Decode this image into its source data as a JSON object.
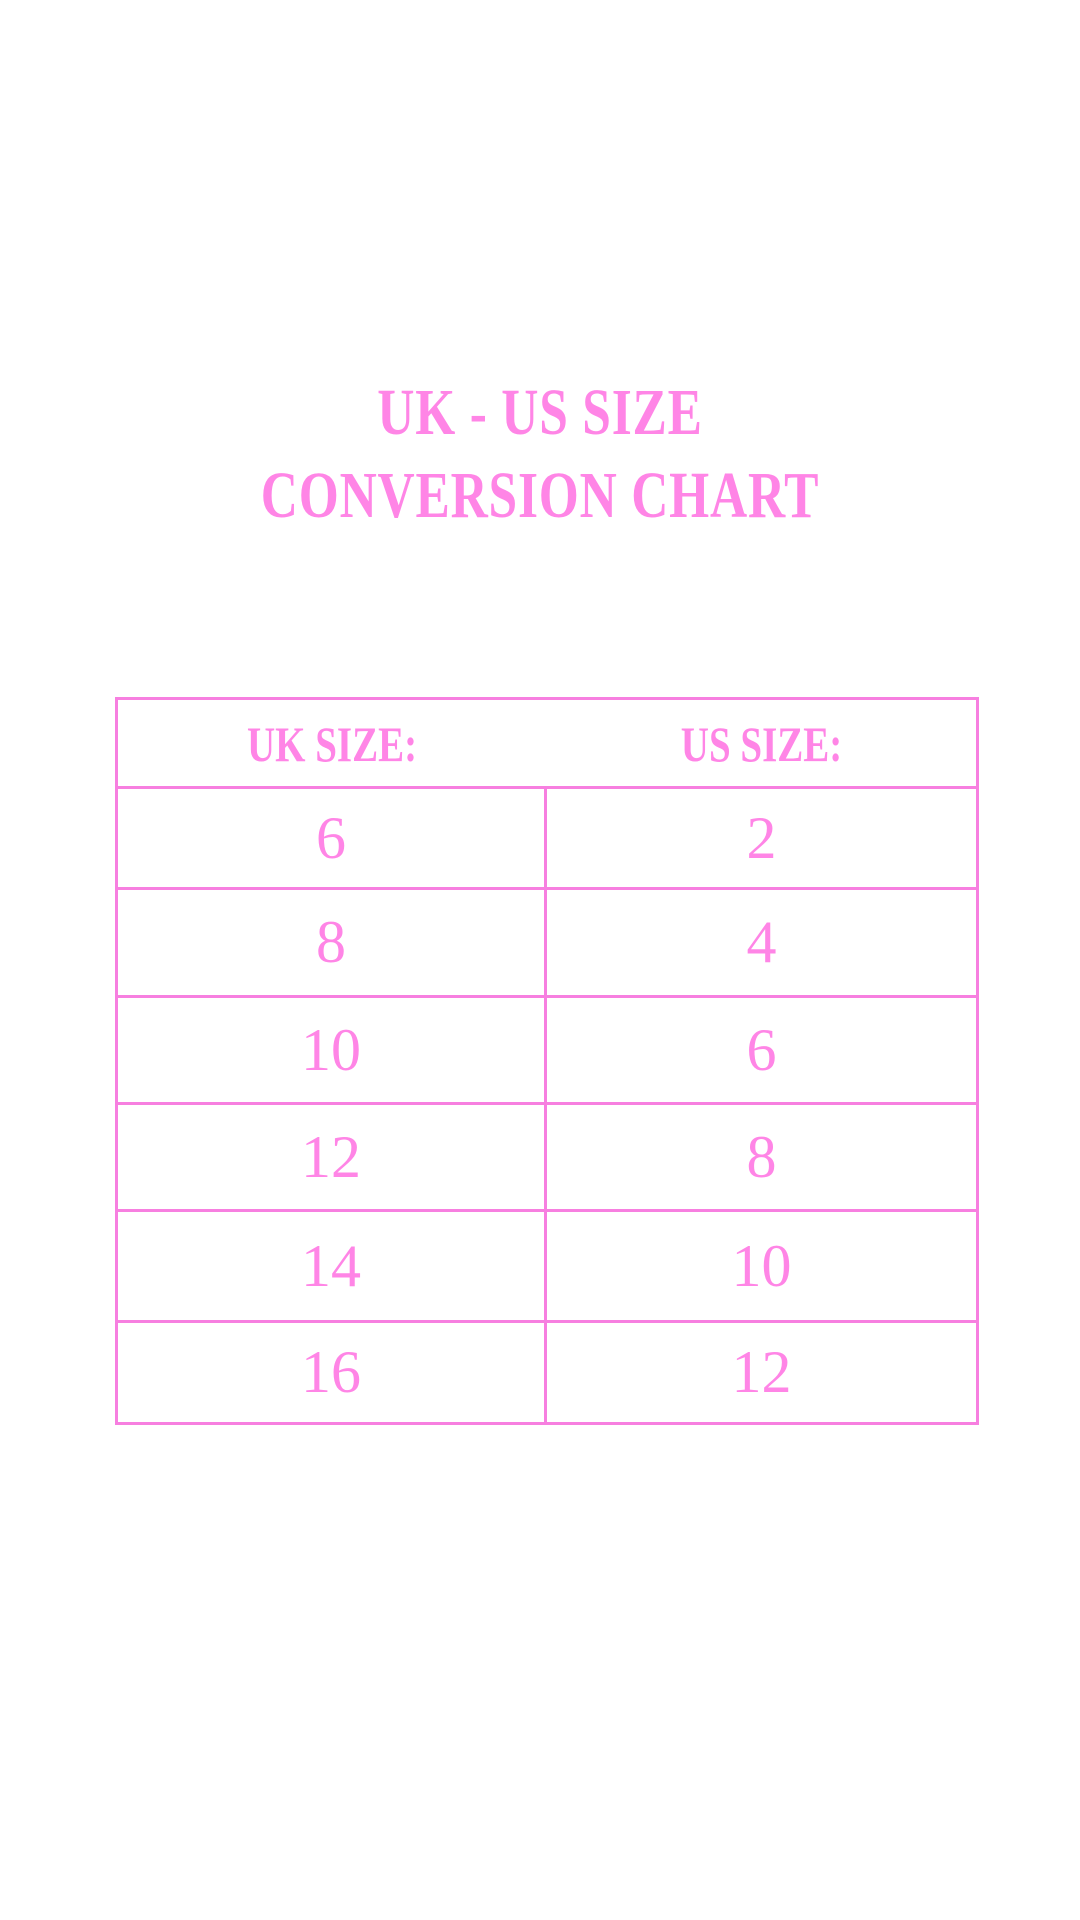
{
  "title": {
    "line1": "UK - US SIZE",
    "line2": "CONVERSION CHART"
  },
  "colors": {
    "accent": "#ff85e6"
  },
  "table": {
    "headers": {
      "uk": "UK SIZE:",
      "us": "US SIZE:"
    },
    "rows": [
      {
        "uk": "6",
        "us": "2"
      },
      {
        "uk": "8",
        "us": "4"
      },
      {
        "uk": "10",
        "us": "6"
      },
      {
        "uk": "12",
        "us": "8"
      },
      {
        "uk": "14",
        "us": "10"
      },
      {
        "uk": "16",
        "us": "12"
      }
    ]
  }
}
